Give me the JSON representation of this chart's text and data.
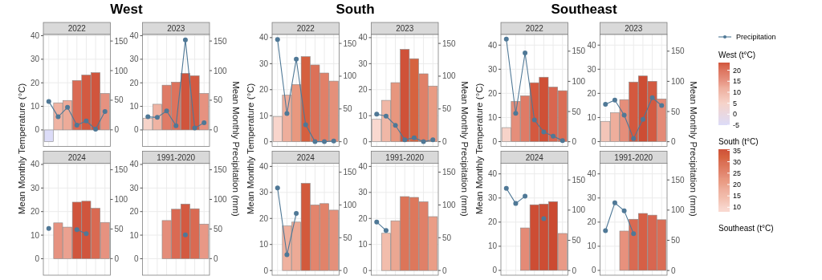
{
  "chart_data": [
    {
      "type": "bar",
      "title": "West",
      "subtitle": "2022",
      "ylabel": "Mean Monthly Temperature (°C)",
      "categories": [
        null,
        null,
        null,
        null,
        null,
        null,
        null
      ],
      "ylim": [
        -7,
        40.5
      ],
      "yticks": [
        0,
        10,
        20,
        30,
        40
      ],
      "y2lim": [
        -28,
        161
      ],
      "y2ticks": [
        0,
        50,
        100,
        150
      ],
      "tick_labels": "y",
      "grid": true,
      "marker": "circle",
      "legend": "right",
      "clabel": "West (t°C)",
      "clim": [
        -5,
        23.5
      ],
      "cticks": [
        -5,
        0,
        5,
        10,
        15,
        20
      ],
      "series": [
        {
          "values": [
            -5,
            11.5,
            12.5,
            21,
            23.3,
            24.3,
            15.5
          ],
          "colors": [
            "#dcdcf8",
            "#efb3a3",
            "#edab99",
            "#da6a53",
            "#d35a41",
            "#d0553d",
            "#e69280"
          ]
        },
        {
          "type": "line",
          "axis": "y2",
          "name": "Precipitation",
          "color": "#4f7896",
          "values": [
            48,
            22,
            38,
            8,
            15,
            1,
            31
          ]
        }
      ]
    },
    {
      "type": "bar",
      "subtitle": "2023",
      "y2label": "Mean Monthly Precipitation (mm)",
      "categories": [
        null,
        null,
        null,
        null,
        null,
        null,
        null
      ],
      "ylim": [
        -7,
        40.5
      ],
      "yticks": [
        0,
        10,
        20,
        30,
        40
      ],
      "y2lim": [
        -28,
        161
      ],
      "y2ticks": [
        0,
        50,
        100,
        150
      ],
      "tick_labels": "y",
      "grid": true,
      "marker": "circle",
      "series": [
        {
          "values": [
            5,
            10.9,
            19,
            20.3,
            24,
            23,
            15.5
          ],
          "colors": [
            "#f6d3c9",
            "#efb3a3",
            "#df7b66",
            "#dc735d",
            "#d0553d",
            "#d35a41",
            "#e69280"
          ]
        },
        {
          "type": "line",
          "axis": "y2",
          "color": "#4f7896",
          "values": [
            22,
            21,
            32,
            7,
            152,
            3,
            12
          ]
        }
      ]
    },
    {
      "type": "bar",
      "subtitle": "2024",
      "categories": [
        null,
        null,
        null,
        null,
        null,
        null,
        null
      ],
      "ylim": [
        -7,
        40.5
      ],
      "yticks": [
        0,
        10,
        20,
        30,
        40
      ],
      "y2lim": [
        -28,
        161
      ],
      "y2ticks": [
        0,
        50,
        100,
        150
      ],
      "tick_labels": "y",
      "grid": true,
      "marker": "circle",
      "series": [
        {
          "values": [
            null,
            15.2,
            13.4,
            24,
            24.4,
            21.4,
            15.4
          ],
          "colors": [
            null,
            "#e69280",
            "#eba190",
            "#d0553d",
            "#d0553d",
            "#d96a52",
            "#e69280"
          ]
        },
        {
          "type": "line",
          "axis": "y2",
          "color": "#4f7896",
          "values": [
            51,
            null,
            null,
            49,
            42,
            null,
            null
          ]
        }
      ]
    },
    {
      "type": "bar",
      "subtitle": "1991-2020",
      "categories": [
        null,
        null,
        null,
        null,
        null,
        null,
        null
      ],
      "ylim": [
        -7,
        40.5
      ],
      "yticks": [
        0,
        10,
        20,
        30,
        40
      ],
      "y2lim": [
        -28,
        161
      ],
      "y2ticks": [
        0,
        50,
        100,
        150
      ],
      "tick_labels": "y",
      "grid": true,
      "marker": "circle",
      "series": [
        {
          "values": [
            null,
            null,
            16.2,
            21,
            23.2,
            21.2,
            14.7
          ],
          "colors": [
            null,
            null,
            "#e48d7a",
            "#da6a53",
            "#d35a41",
            "#d96a52",
            "#e89886"
          ]
        },
        {
          "type": "line",
          "axis": "y2",
          "color": "#4f7896",
          "values": [
            null,
            null,
            null,
            null,
            40,
            null,
            null
          ]
        }
      ]
    },
    {
      "type": "bar",
      "title": "South",
      "subtitle": "2022",
      "ylabel": "Mean Monthly Temperature (°C)",
      "categories": [
        null,
        null,
        null,
        null,
        null,
        null,
        null
      ],
      "ylim": [
        -1.8,
        41.2
      ],
      "yticks": [
        0,
        10,
        20,
        30,
        40
      ],
      "y2lim": [
        -7.2,
        163.6
      ],
      "y2ticks": [
        0,
        50,
        100,
        150
      ],
      "tick_labels": "y",
      "grid": true,
      "marker": "circle",
      "clabel": "South (t°C)",
      "clim": [
        8,
        35.5
      ],
      "cticks": [
        10,
        15,
        20,
        25,
        30,
        35
      ],
      "series": [
        {
          "values": [
            9.7,
            17.9,
            22,
            32.7,
            29.5,
            26.4,
            23.3
          ],
          "colors": [
            "#f8d5cc",
            "#eeae9c",
            "#e8987f",
            "#d5603f",
            "#db7158",
            "#e18068",
            "#e5907a"
          ]
        },
        {
          "type": "line",
          "axis": "y2",
          "color": "#4f7896",
          "values": [
            156,
            43,
            126,
            26,
            0,
            0,
            1
          ]
        }
      ]
    },
    {
      "type": "bar",
      "subtitle": "2023",
      "y2label": "Mean Monthly Precipitation (mm)",
      "categories": [
        null,
        null,
        null,
        null,
        null,
        null,
        null
      ],
      "ylim": [
        -1.8,
        41.2
      ],
      "yticks": [
        0,
        10,
        20,
        30,
        40
      ],
      "y2lim": [
        -7.2,
        163.6
      ],
      "y2ticks": [
        0,
        50,
        100,
        150
      ],
      "tick_labels": "y",
      "grid": true,
      "marker": "circle",
      "series": [
        {
          "values": [
            8.6,
            15.9,
            22.7,
            35.5,
            31.9,
            26.1,
            21.4
          ],
          "colors": [
            "#f9d8cf",
            "#f0b7a6",
            "#e7967e",
            "#cf5239",
            "#d6633f",
            "#e08067",
            "#e99b83"
          ]
        },
        {
          "type": "line",
          "axis": "y2",
          "color": "#4f7896",
          "values": [
            42,
            39,
            25,
            3,
            6,
            0,
            3
          ]
        }
      ]
    },
    {
      "type": "bar",
      "subtitle": "2024",
      "categories": [
        null,
        null,
        null,
        null,
        null,
        null,
        null
      ],
      "ylim": [
        -1.8,
        41.2
      ],
      "yticks": [
        0,
        10,
        20,
        30,
        40
      ],
      "y2lim": [
        -7.2,
        163.6
      ],
      "y2ticks": [
        0,
        50,
        100,
        150
      ],
      "tick_labels": "y",
      "grid": true,
      "marker": "circle",
      "series": [
        {
          "values": [
            null,
            17.1,
            18.6,
            33.5,
            25.2,
            25.7,
            23.2
          ],
          "colors": [
            null,
            "#efb19f",
            "#ecaa96",
            "#d25a3c",
            "#e2856d",
            "#e1836a",
            "#e5907a"
          ]
        },
        {
          "type": "line",
          "axis": "y2",
          "color": "#4f7896",
          "values": [
            126,
            24,
            87,
            null,
            null,
            null,
            null
          ]
        }
      ]
    },
    {
      "type": "bar",
      "subtitle": "1991-2020",
      "categories": [
        null,
        null,
        null,
        null,
        null,
        null,
        null
      ],
      "ylim": [
        -1.8,
        41.2
      ],
      "yticks": [
        0,
        10,
        20,
        30,
        40
      ],
      "y2lim": [
        -7.2,
        163.6
      ],
      "y2ticks": [
        0,
        50,
        100,
        150
      ],
      "tick_labels": "y",
      "grid": true,
      "marker": "circle",
      "series": [
        {
          "values": [
            null,
            14.3,
            19.1,
            28.4,
            28.1,
            26.4,
            20.7
          ],
          "colors": [
            null,
            "#f2bdac",
            "#eba792",
            "#dc7559",
            "#dd785c",
            "#e08068",
            "#ea9d86"
          ]
        },
        {
          "type": "line",
          "axis": "y2",
          "color": "#4f7896",
          "values": [
            74,
            61,
            null,
            null,
            null,
            null,
            null
          ]
        }
      ]
    },
    {
      "type": "bar",
      "title": "Southeast",
      "subtitle": "2022",
      "ylabel": "Mean Monthly Temperature (°C)",
      "categories": [
        null,
        null,
        null,
        null,
        null,
        null,
        null
      ],
      "ylim": [
        -2,
        44.4
      ],
      "yticks": [
        0,
        10,
        20,
        30,
        40
      ],
      "y2lim": [
        -7.8,
        177.6
      ],
      "y2ticks": [
        0,
        50,
        100,
        150
      ],
      "tick_labels": "y",
      "grid": true,
      "marker": "circle",
      "clabel": "Southeast (t°C)",
      "series": [
        {
          "values": [
            5.8,
            16.7,
            19,
            24.4,
            26.7,
            22.6,
            21.1
          ],
          "colors": [
            "#f6d3c9",
            "#e58e7a",
            "#df7b66",
            "#d4593f",
            "#cf5036",
            "#d86650",
            "#da6d55"
          ]
        },
        {
          "type": "line",
          "axis": "y2",
          "color": "#4f7896",
          "values": [
            170,
            47,
            147,
            36,
            16,
            9,
            2
          ]
        }
      ]
    },
    {
      "type": "bar",
      "subtitle": "2023",
      "y2label": "Mean Monthly Precipitation (mm)",
      "categories": [
        null,
        null,
        null,
        null,
        null,
        null,
        null
      ],
      "ylim": [
        -2,
        44.4
      ],
      "yticks": [
        0,
        10,
        20,
        30,
        40
      ],
      "y2lim": [
        -7.8,
        177.6
      ],
      "y2ticks": [
        0,
        50,
        100,
        150
      ],
      "tick_labels": "y",
      "grid": true,
      "marker": "circle",
      "series": [
        {
          "values": [
            8.4,
            12,
            17.4,
            24.7,
            27.2,
            25,
            17.7
          ],
          "colors": [
            "#f3c5b8",
            "#eeae9c",
            "#e58e7a",
            "#d4593f",
            "#cd4d34",
            "#d35a41",
            "#e48a76"
          ]
        },
        {
          "type": "line",
          "axis": "y2",
          "color": "#4f7896",
          "values": [
            62,
            69,
            44,
            5,
            37,
            73,
            60
          ]
        }
      ]
    },
    {
      "type": "bar",
      "subtitle": "2024",
      "categories": [
        null,
        null,
        null,
        null,
        null,
        null,
        null
      ],
      "ylim": [
        -2,
        44.4
      ],
      "yticks": [
        0,
        10,
        20,
        30,
        40
      ],
      "y2lim": [
        -7.8,
        177.6
      ],
      "y2ticks": [
        0,
        50,
        100,
        150
      ],
      "tick_labels": "y",
      "grid": true,
      "marker": "circle",
      "series": [
        {
          "values": [
            null,
            null,
            17.6,
            27.2,
            27.5,
            28.5,
            15.3
          ],
          "colors": [
            null,
            null,
            "#e48a76",
            "#cd4d34",
            "#cd4d34",
            "#cb4a31",
            "#e99a86"
          ]
        },
        {
          "type": "line",
          "axis": "y2",
          "color": "#4f7896",
          "values": [
            136,
            111,
            123,
            null,
            86,
            null,
            null
          ]
        }
      ]
    },
    {
      "type": "bar",
      "subtitle": "1991-2020",
      "categories": [
        null,
        null,
        null,
        null,
        null,
        null,
        null
      ],
      "ylim": [
        -2,
        44.4
      ],
      "yticks": [
        0,
        10,
        20,
        30,
        40
      ],
      "y2lim": [
        -7.8,
        177.6
      ],
      "y2ticks": [
        0,
        50,
        100,
        150
      ],
      "tick_labels": "y",
      "grid": true,
      "marker": "circle",
      "series": [
        {
          "values": [
            null,
            null,
            16.3,
            21.2,
            23.6,
            22.9,
            21
          ],
          "colors": [
            null,
            null,
            "#e7917d",
            "#d96a52",
            "#d65f46",
            "#d86650",
            "#da6d55"
          ]
        },
        {
          "type": "line",
          "axis": "y2",
          "color": "#4f7896",
          "values": [
            66,
            112,
            99,
            61,
            null,
            null,
            null
          ]
        }
      ]
    }
  ]
}
